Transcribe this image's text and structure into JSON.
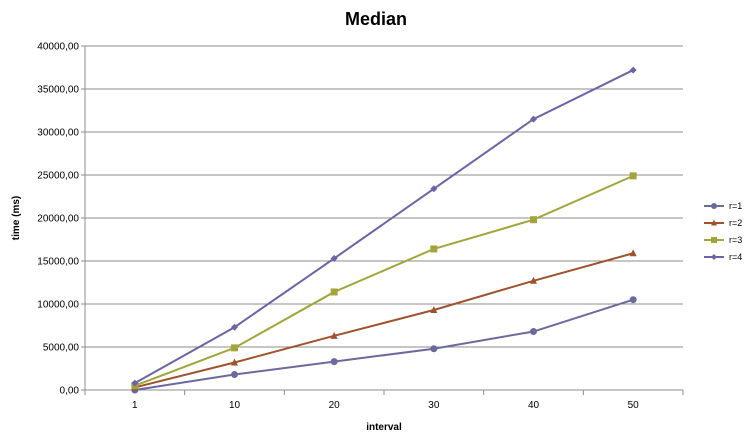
{
  "chart_data": {
    "type": "line",
    "title": "Median",
    "xlabel": "interval",
    "ylabel": "time (ms)",
    "categories": [
      "1",
      "10",
      "20",
      "30",
      "40",
      "50"
    ],
    "ylim": [
      0,
      40000
    ],
    "yticks": [
      0,
      5000,
      10000,
      15000,
      20000,
      25000,
      30000,
      35000,
      40000
    ],
    "ytick_labels": [
      "0,00",
      "5000,00",
      "10000,00",
      "15000,00",
      "20000,00",
      "25000,00",
      "30000,00",
      "35000,00",
      "40000,00"
    ],
    "grid": true,
    "legend_position": "right",
    "series": [
      {
        "name": "r=1",
        "color": "#6a6a9e",
        "marker": "circle",
        "values": [
          0,
          1800,
          3300,
          4800,
          6800,
          10500
        ]
      },
      {
        "name": "r=2",
        "color": "#a0522d",
        "marker": "triangle",
        "values": [
          300,
          3200,
          6300,
          9300,
          12700,
          15900
        ]
      },
      {
        "name": "r=3",
        "color": "#a3a53b",
        "marker": "square",
        "values": [
          500,
          4900,
          11400,
          16400,
          19800,
          24900
        ]
      },
      {
        "name": "r=4",
        "color": "#6f62a8",
        "marker": "diamond",
        "values": [
          800,
          7300,
          15300,
          23400,
          31500,
          37200
        ]
      }
    ]
  }
}
